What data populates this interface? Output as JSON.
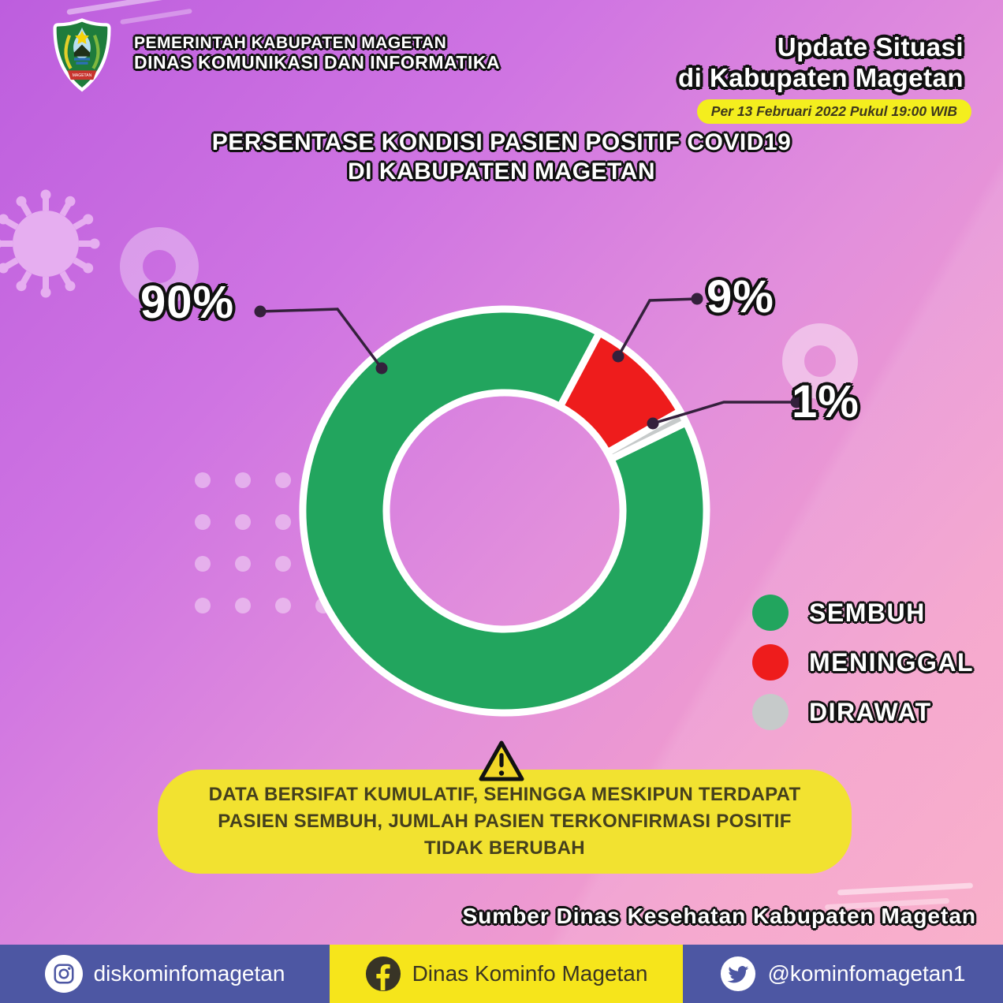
{
  "header": {
    "org_line1": "PEMERINTAH KABUPATEN MAGETAN",
    "org_line2": "DINAS KOMUNIKASI DAN INFORMATIKA",
    "update_title_line1": "Update Situasi",
    "update_title_line2": "di Kabupaten Magetan",
    "timestamp": "Per 13 Februari 2022 Pukul 19:00 WIB"
  },
  "title": {
    "line1": "PERSENTASE KONDISI PASIEN POSITIF COVID19",
    "line2": "DI KABUPATEN MAGETAN"
  },
  "chart_data": {
    "type": "pie",
    "subtype": "donut",
    "title": "PERSENTASE KONDISI PASIEN POSITIF COVID19 DI KABUPATEN MAGETAN",
    "categories": [
      "SEMBUH",
      "MENINGGAL",
      "DIRAWAT"
    ],
    "values": [
      90,
      9,
      1
    ],
    "unit": "%",
    "slice_labels": [
      "90%",
      "9%",
      "1%"
    ],
    "slice_colors": [
      "#22a55e",
      "#ee1c1c",
      "#c6caca"
    ],
    "start_angle_deg": 64,
    "legend_position": "right"
  },
  "legend": {
    "items": [
      {
        "label": "SEMBUH",
        "color": "#22a55e"
      },
      {
        "label": "MENINGGAL",
        "color": "#ee1c1c"
      },
      {
        "label": "DIRAWAT",
        "color": "#c6caca"
      }
    ]
  },
  "warning": {
    "line1": "DATA BERSIFAT KUMULATIF, SEHINGGA MESKIPUN TERDAPAT",
    "line2": "PASIEN SEMBUH, JUMLAH PASIEN TERKONFIRMASI POSITIF",
    "line3": "TIDAK BERUBAH"
  },
  "source": {
    "text": "Sumber Dinas Kesehatan Kabupaten Magetan"
  },
  "footer": {
    "instagram_handle": "diskominfomagetan",
    "facebook_name": "Dinas Kominfo Magetan",
    "twitter_handle": "@kominfomagetan1"
  },
  "colors": {
    "sembuh_green": "#22a55e",
    "meninggal_red": "#ee1c1c",
    "dirawat_gray": "#c6caca",
    "warning_yellow": "#f2e230",
    "pill_yellow": "#f4ee1e",
    "footer_blue": "#4d57a3",
    "footer_yellow": "#f6e51b"
  }
}
